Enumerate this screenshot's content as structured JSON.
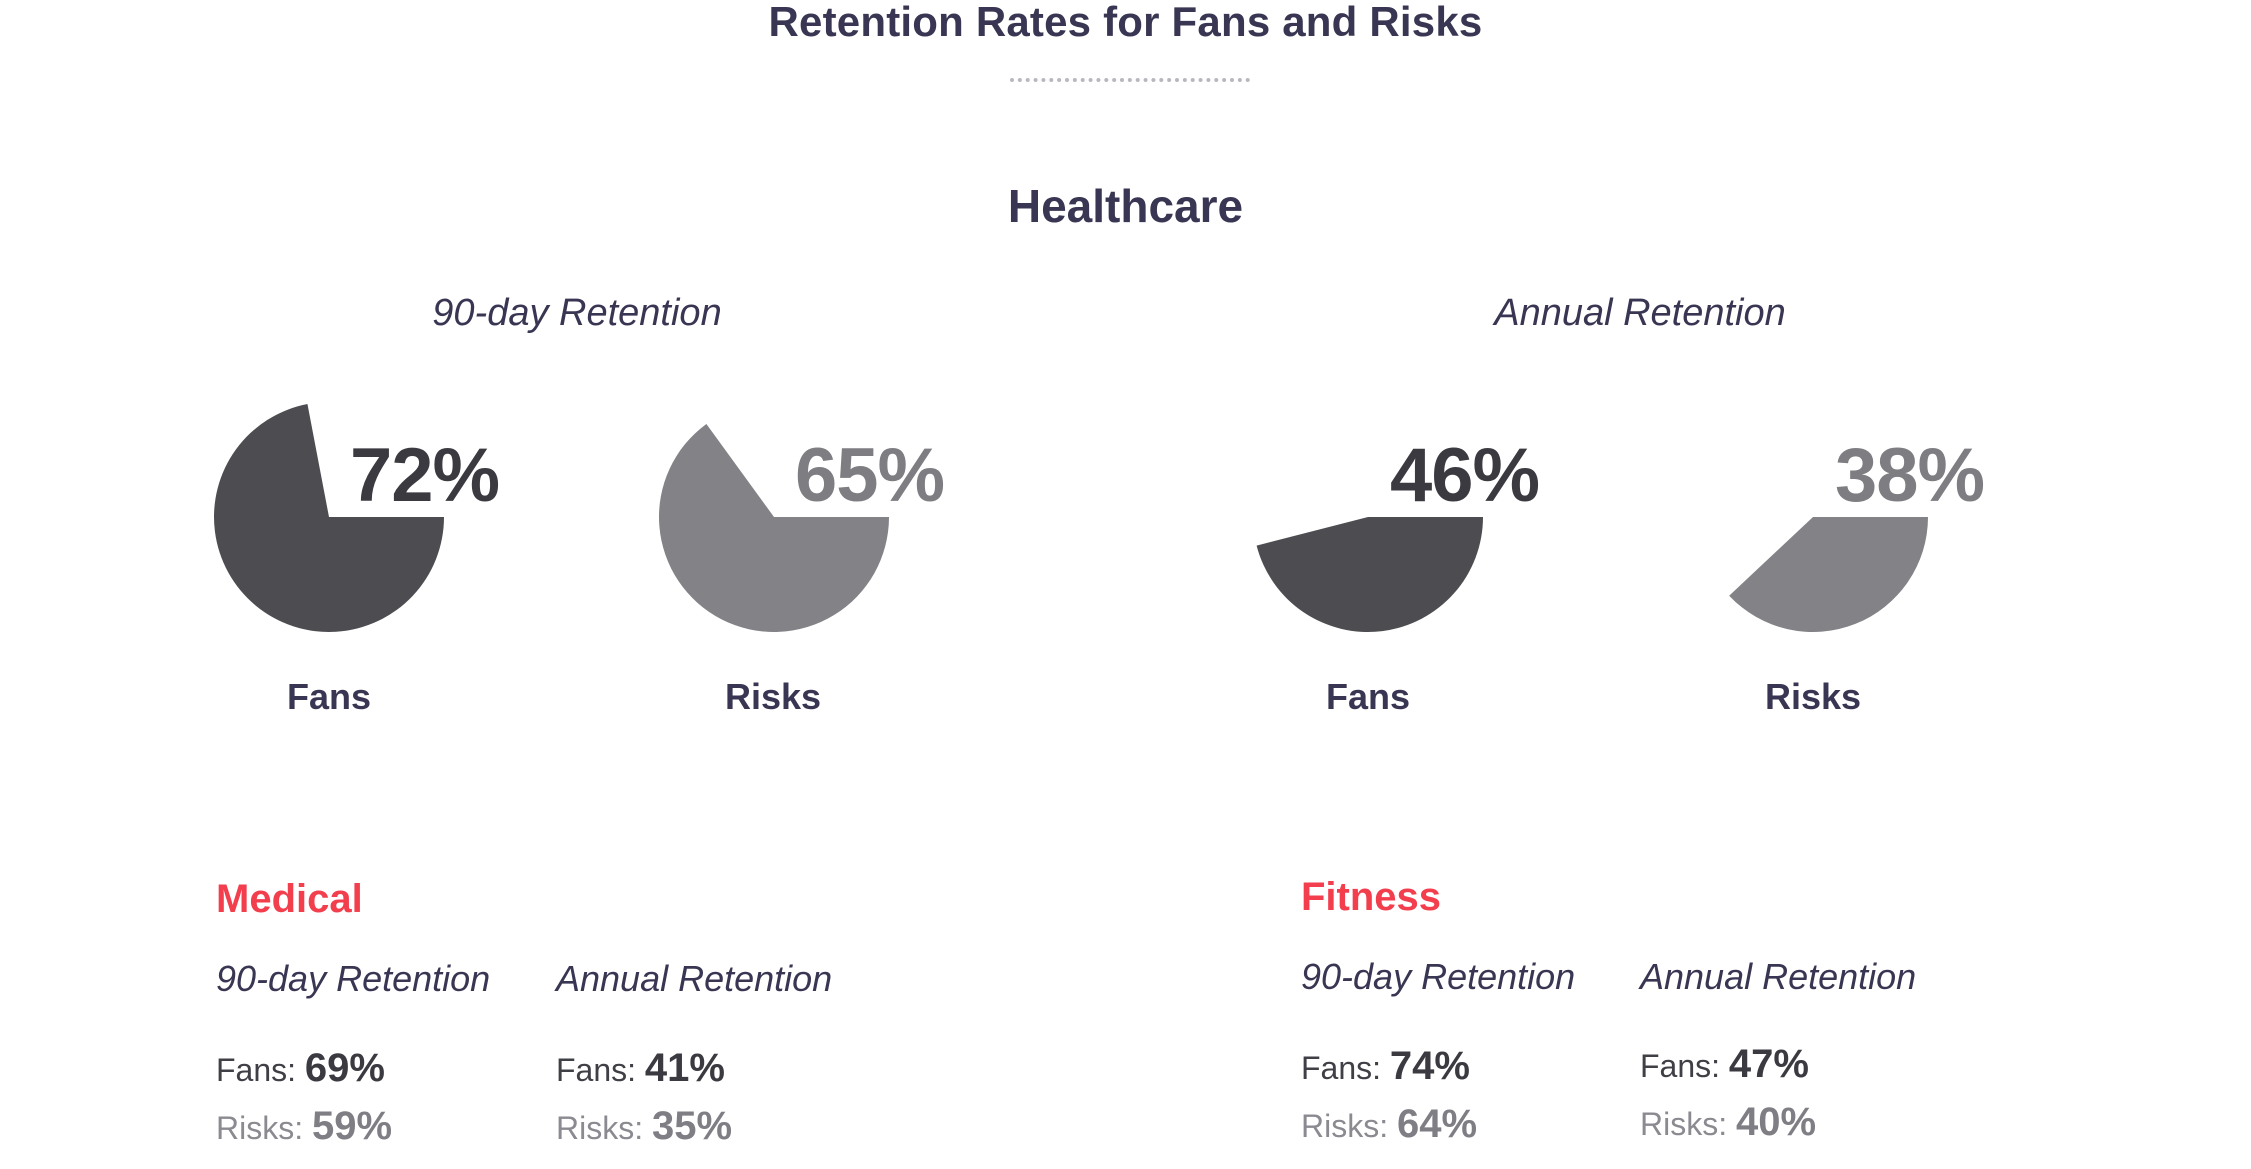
{
  "title": "Retention Rates for Fans and Risks",
  "section": "Healthcare",
  "colors": {
    "accent": "#f23e4d",
    "dark": "#4d4d51",
    "gray": "#828287",
    "text": "#383652"
  },
  "chart_data": [
    {
      "type": "pie",
      "title": "90-day Retention",
      "series": [
        {
          "name": "Fans",
          "value": 72,
          "label": "72%"
        },
        {
          "name": "Risks",
          "value": 65,
          "label": "65%"
        }
      ]
    },
    {
      "type": "pie",
      "title": "Annual Retention",
      "series": [
        {
          "name": "Fans",
          "value": 46,
          "label": "46%"
        },
        {
          "name": "Risks",
          "value": 38,
          "label": "38%"
        }
      ]
    }
  ],
  "segments": [
    {
      "title": "Medical",
      "groups": [
        {
          "heading": "90-day Retention",
          "fans_label": "Fans:",
          "fans": "69%",
          "risks_label": "Risks:",
          "risks": "59%"
        },
        {
          "heading": "Annual Retention",
          "fans_label": "Fans:",
          "fans": "41%",
          "risks_label": "Risks:",
          "risks": "35%"
        }
      ]
    },
    {
      "title": "Fitness",
      "groups": [
        {
          "heading": "90-day Retention",
          "fans_label": "Fans:",
          "fans": "74%",
          "risks_label": "Risks:",
          "risks": "64%"
        },
        {
          "heading": "Annual Retention",
          "fans_label": "Fans:",
          "fans": "47%",
          "risks_label": "Risks:",
          "risks": "40%"
        }
      ]
    }
  ]
}
